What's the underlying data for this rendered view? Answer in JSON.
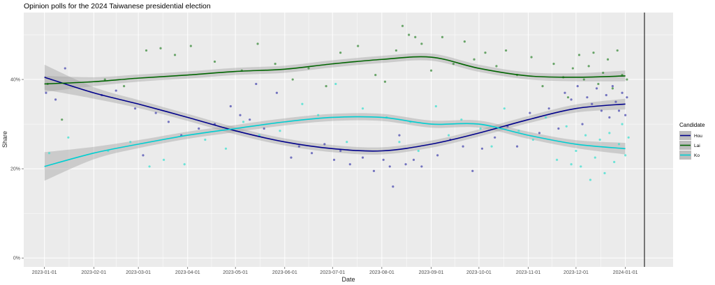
{
  "chart_data": {
    "type": "scatter",
    "title": "Opinion polls for the 2024 Taiwanese presidential election",
    "xlabel": "Date",
    "ylabel": "Share",
    "x_ticks": [
      "2023-01-01",
      "2023-02-01",
      "2023-03-01",
      "2023-04-01",
      "2023-05-01",
      "2023-06-01",
      "2023-07-01",
      "2023-08-01",
      "2023-09-01",
      "2023-10-01",
      "2023-11-01",
      "2023-12-01",
      "2024-01-01"
    ],
    "y_ticks": [
      "0%",
      "20%",
      "40%"
    ],
    "y_tick_values": [
      0,
      20,
      40
    ],
    "xlim": [
      "2022-12-19",
      "2024-01-31"
    ],
    "ylim": [
      -2,
      55
    ],
    "vline_date": "2024-01-13",
    "grid": true,
    "legend": {
      "title": "Candidate",
      "position": "right"
    },
    "series": [
      {
        "name": "Hou",
        "color": "#00008B",
        "point_color": "#4B4BB0",
        "trend": [
          {
            "date": "2023-01-01",
            "y": 40.5,
            "se": 2.8
          },
          {
            "date": "2023-02-01",
            "y": 37.0,
            "se": 1.3
          },
          {
            "date": "2023-03-01",
            "y": 34.5,
            "se": 0.9
          },
          {
            "date": "2023-04-01",
            "y": 31.5,
            "se": 0.8
          },
          {
            "date": "2023-05-01",
            "y": 28.5,
            "se": 0.8
          },
          {
            "date": "2023-06-01",
            "y": 26.0,
            "se": 0.8
          },
          {
            "date": "2023-07-01",
            "y": 24.5,
            "se": 0.8
          },
          {
            "date": "2023-08-01",
            "y": 24.0,
            "se": 0.8
          },
          {
            "date": "2023-09-01",
            "y": 25.5,
            "se": 0.8
          },
          {
            "date": "2023-10-01",
            "y": 28.0,
            "se": 0.8
          },
          {
            "date": "2023-11-01",
            "y": 31.0,
            "se": 0.8
          },
          {
            "date": "2023-12-01",
            "y": 33.5,
            "se": 0.9
          },
          {
            "date": "2024-01-01",
            "y": 34.5,
            "se": 1.2
          }
        ],
        "points": [
          [
            "2023-01-02",
            37.0
          ],
          [
            "2023-01-08",
            35.5
          ],
          [
            "2023-01-14",
            42.5
          ],
          [
            "2023-02-06",
            36.5
          ],
          [
            "2023-02-15",
            37.5
          ],
          [
            "2023-02-27",
            33.5
          ],
          [
            "2023-03-04",
            23.0
          ],
          [
            "2023-03-12",
            32.5
          ],
          [
            "2023-03-20",
            30.5
          ],
          [
            "2023-03-28",
            27.5
          ],
          [
            "2023-04-08",
            29.0
          ],
          [
            "2023-04-18",
            30.0
          ],
          [
            "2023-04-28",
            34.0
          ],
          [
            "2023-05-04",
            32.0
          ],
          [
            "2023-05-10",
            31.0
          ],
          [
            "2023-05-14",
            39.0
          ],
          [
            "2023-05-19",
            29.0
          ],
          [
            "2023-05-27",
            37.0
          ],
          [
            "2023-06-05",
            22.5
          ],
          [
            "2023-06-10",
            25.0
          ],
          [
            "2023-06-18",
            23.5
          ],
          [
            "2023-06-26",
            25.5
          ],
          [
            "2023-07-02",
            22.0
          ],
          [
            "2023-07-06",
            24.0
          ],
          [
            "2023-07-12",
            21.0
          ],
          [
            "2023-07-20",
            22.5
          ],
          [
            "2023-07-27",
            19.5
          ],
          [
            "2023-08-02",
            22.0
          ],
          [
            "2023-08-06",
            20.5
          ],
          [
            "2023-08-08",
            16.0
          ],
          [
            "2023-08-12",
            27.5
          ],
          [
            "2023-08-16",
            21.0
          ],
          [
            "2023-08-21",
            22.0
          ],
          [
            "2023-08-26",
            20.5
          ],
          [
            "2023-09-05",
            23.0
          ],
          [
            "2023-09-13",
            26.5
          ],
          [
            "2023-09-21",
            25.0
          ],
          [
            "2023-09-27",
            19.5
          ],
          [
            "2023-10-03",
            24.5
          ],
          [
            "2023-10-11",
            27.0
          ],
          [
            "2023-10-19",
            29.5
          ],
          [
            "2023-10-25",
            25.0
          ],
          [
            "2023-11-02",
            32.5
          ],
          [
            "2023-11-08",
            28.0
          ],
          [
            "2023-11-14",
            33.5
          ],
          [
            "2023-11-20",
            29.0
          ],
          [
            "2023-11-24",
            37.0
          ],
          [
            "2023-11-28",
            35.5
          ],
          [
            "2023-12-02",
            38.5
          ],
          [
            "2023-12-05",
            30.0
          ],
          [
            "2023-12-08",
            36.0
          ],
          [
            "2023-12-11",
            34.5
          ],
          [
            "2023-12-14",
            38.0
          ],
          [
            "2023-12-17",
            33.0
          ],
          [
            "2023-12-20",
            36.5
          ],
          [
            "2023-12-22",
            31.5
          ],
          [
            "2023-12-24",
            38.5
          ],
          [
            "2023-12-26",
            35.0
          ],
          [
            "2023-12-28",
            33.0
          ],
          [
            "2023-12-30",
            37.0
          ],
          [
            "2024-01-01",
            32.0
          ],
          [
            "2024-01-02",
            36.0
          ]
        ]
      },
      {
        "name": "Lai",
        "color": "#006400",
        "point_color": "#3C8C3C",
        "trend": [
          {
            "date": "2023-01-01",
            "y": 39.0,
            "se": 1.8
          },
          {
            "date": "2023-02-01",
            "y": 39.5,
            "se": 1.0
          },
          {
            "date": "2023-03-01",
            "y": 40.3,
            "se": 0.8
          },
          {
            "date": "2023-04-01",
            "y": 41.0,
            "se": 0.8
          },
          {
            "date": "2023-05-01",
            "y": 41.8,
            "se": 0.8
          },
          {
            "date": "2023-06-01",
            "y": 42.3,
            "se": 0.8
          },
          {
            "date": "2023-07-01",
            "y": 43.5,
            "se": 0.8
          },
          {
            "date": "2023-08-01",
            "y": 44.5,
            "se": 0.8
          },
          {
            "date": "2023-09-01",
            "y": 45.0,
            "se": 0.8
          },
          {
            "date": "2023-10-01",
            "y": 42.5,
            "se": 0.8
          },
          {
            "date": "2023-11-01",
            "y": 40.8,
            "se": 0.8
          },
          {
            "date": "2023-12-01",
            "y": 40.5,
            "se": 0.9
          },
          {
            "date": "2024-01-01",
            "y": 40.8,
            "se": 1.2
          }
        ],
        "points": [
          [
            "2023-01-03",
            39.0
          ],
          [
            "2023-01-12",
            31.0
          ],
          [
            "2023-02-08",
            40.0
          ],
          [
            "2023-02-20",
            38.5
          ],
          [
            "2023-03-06",
            46.5
          ],
          [
            "2023-03-15",
            47.0
          ],
          [
            "2023-03-24",
            45.5
          ],
          [
            "2023-04-03",
            47.5
          ],
          [
            "2023-04-18",
            44.0
          ],
          [
            "2023-05-05",
            42.0
          ],
          [
            "2023-05-15",
            48.0
          ],
          [
            "2023-05-26",
            43.5
          ],
          [
            "2023-06-06",
            40.0
          ],
          [
            "2023-06-16",
            42.5
          ],
          [
            "2023-06-27",
            38.5
          ],
          [
            "2023-07-06",
            46.0
          ],
          [
            "2023-07-17",
            47.5
          ],
          [
            "2023-07-28",
            41.0
          ],
          [
            "2023-08-03",
            39.5
          ],
          [
            "2023-08-10",
            46.5
          ],
          [
            "2023-08-14",
            52.0
          ],
          [
            "2023-08-18",
            50.0
          ],
          [
            "2023-08-22",
            49.5
          ],
          [
            "2023-08-26",
            48.0
          ],
          [
            "2023-09-01",
            42.0
          ],
          [
            "2023-09-08",
            49.5
          ],
          [
            "2023-09-15",
            43.5
          ],
          [
            "2023-09-22",
            48.5
          ],
          [
            "2023-09-28",
            44.5
          ],
          [
            "2023-10-05",
            46.0
          ],
          [
            "2023-10-12",
            43.0
          ],
          [
            "2023-10-18",
            46.5
          ],
          [
            "2023-10-25",
            41.0
          ],
          [
            "2023-11-03",
            45.0
          ],
          [
            "2023-11-10",
            38.5
          ],
          [
            "2023-11-17",
            43.5
          ],
          [
            "2023-11-23",
            40.5
          ],
          [
            "2023-11-26",
            36.0
          ],
          [
            "2023-11-29",
            42.5
          ],
          [
            "2023-12-03",
            45.5
          ],
          [
            "2023-12-06",
            40.0
          ],
          [
            "2023-12-09",
            43.0
          ],
          [
            "2023-12-12",
            46.0
          ],
          [
            "2023-12-15",
            39.0
          ],
          [
            "2023-12-18",
            41.5
          ],
          [
            "2023-12-21",
            44.5
          ],
          [
            "2023-12-24",
            38.0
          ],
          [
            "2023-12-27",
            46.5
          ],
          [
            "2023-12-30",
            41.0
          ],
          [
            "2024-01-02",
            40.0
          ]
        ]
      },
      {
        "name": "Ko",
        "color": "#00CED1",
        "point_color": "#40E0D0",
        "trend": [
          {
            "date": "2023-01-01",
            "y": 20.5,
            "se": 3.2
          },
          {
            "date": "2023-02-01",
            "y": 23.5,
            "se": 1.4
          },
          {
            "date": "2023-03-01",
            "y": 25.5,
            "se": 0.9
          },
          {
            "date": "2023-04-01",
            "y": 27.5,
            "se": 0.8
          },
          {
            "date": "2023-05-01",
            "y": 29.0,
            "se": 0.8
          },
          {
            "date": "2023-06-01",
            "y": 30.5,
            "se": 0.8
          },
          {
            "date": "2023-07-01",
            "y": 31.5,
            "se": 0.8
          },
          {
            "date": "2023-08-01",
            "y": 31.5,
            "se": 0.8
          },
          {
            "date": "2023-09-01",
            "y": 30.0,
            "se": 0.8
          },
          {
            "date": "2023-10-01",
            "y": 30.0,
            "se": 0.8
          },
          {
            "date": "2023-11-01",
            "y": 27.5,
            "se": 0.8
          },
          {
            "date": "2023-12-01",
            "y": 25.5,
            "se": 0.9
          },
          {
            "date": "2024-01-01",
            "y": 24.5,
            "se": 1.3
          }
        ],
        "points": [
          [
            "2023-01-04",
            23.5
          ],
          [
            "2023-01-16",
            27.0
          ],
          [
            "2023-02-10",
            24.0
          ],
          [
            "2023-02-24",
            26.0
          ],
          [
            "2023-03-08",
            20.5
          ],
          [
            "2023-03-17",
            22.0
          ],
          [
            "2023-03-30",
            21.0
          ],
          [
            "2023-04-12",
            26.5
          ],
          [
            "2023-04-25",
            24.5
          ],
          [
            "2023-05-06",
            30.5
          ],
          [
            "2023-05-16",
            27.5
          ],
          [
            "2023-05-29",
            28.5
          ],
          [
            "2023-06-12",
            34.5
          ],
          [
            "2023-06-22",
            32.0
          ],
          [
            "2023-07-03",
            39.0
          ],
          [
            "2023-07-10",
            26.0
          ],
          [
            "2023-07-20",
            33.5
          ],
          [
            "2023-08-04",
            31.5
          ],
          [
            "2023-08-12",
            26.0
          ],
          [
            "2023-08-19",
            30.5
          ],
          [
            "2023-08-24",
            24.0
          ],
          [
            "2023-09-04",
            34.0
          ],
          [
            "2023-09-12",
            27.5
          ],
          [
            "2023-09-20",
            31.0
          ],
          [
            "2023-10-02",
            29.0
          ],
          [
            "2023-10-09",
            25.0
          ],
          [
            "2023-10-17",
            33.5
          ],
          [
            "2023-10-26",
            28.5
          ],
          [
            "2023-11-04",
            26.5
          ],
          [
            "2023-11-12",
            31.5
          ],
          [
            "2023-11-19",
            22.0
          ],
          [
            "2023-11-25",
            29.5
          ],
          [
            "2023-11-28",
            21.0
          ],
          [
            "2023-12-01",
            24.0
          ],
          [
            "2023-12-04",
            20.5
          ],
          [
            "2023-12-07",
            27.5
          ],
          [
            "2023-12-10",
            17.5
          ],
          [
            "2023-12-13",
            22.5
          ],
          [
            "2023-12-16",
            26.5
          ],
          [
            "2023-12-19",
            19.0
          ],
          [
            "2023-12-22",
            28.0
          ],
          [
            "2023-12-25",
            21.5
          ],
          [
            "2023-12-28",
            25.5
          ],
          [
            "2023-12-30",
            30.0
          ],
          [
            "2024-01-01",
            23.0
          ],
          [
            "2024-01-03",
            27.0
          ]
        ]
      }
    ]
  }
}
